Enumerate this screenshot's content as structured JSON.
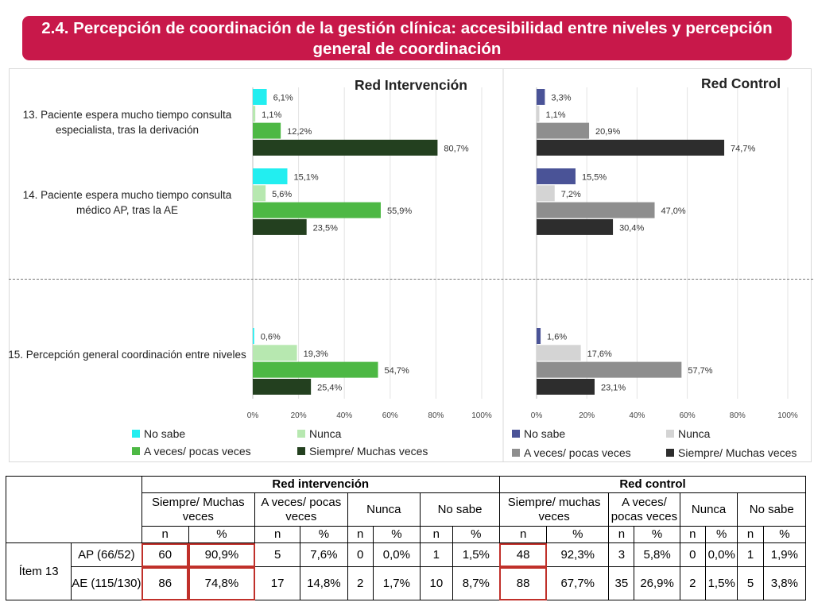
{
  "title": "2.4. Percepción de coordinación de la gestión clínica: accesibilidad entre niveles y percepción general de coordinación",
  "chart_data": [
    {
      "type": "bar",
      "orientation": "horizontal",
      "title": "Red Intervención",
      "categories": [
        "13. Paciente espera mucho tiempo consulta especialista, tras la derivación",
        "14. Paciente espera mucho tiempo consulta médico AP, tras la AE",
        "15. Percepción general coordinación entre niveles"
      ],
      "series": [
        {
          "name": "No sabe",
          "color": "#22eef0",
          "values": [
            6.1,
            15.1,
            0.6
          ],
          "labels": [
            "6,1%",
            "15,1%",
            "0,6%"
          ]
        },
        {
          "name": "Nunca",
          "color": "#b7e8b0",
          "values": [
            1.1,
            5.6,
            19.3
          ],
          "labels": [
            "1,1%",
            "5,6%",
            "19,3%"
          ]
        },
        {
          "name": "A veces/ pocas veces",
          "color": "#4db844",
          "values": [
            12.2,
            55.9,
            54.7
          ],
          "labels": [
            "12,2%",
            "55,9%",
            "54,7%"
          ]
        },
        {
          "name": "Siempre/ Muchas veces",
          "color": "#23401f",
          "values": [
            80.7,
            23.5,
            25.4
          ],
          "labels": [
            "80,7%",
            "23,5%",
            "25,4%"
          ]
        }
      ],
      "xlim": [
        0,
        100
      ],
      "xticks": [
        "0%",
        "20%",
        "40%",
        "60%",
        "80%",
        "100%"
      ],
      "grid": true
    },
    {
      "type": "bar",
      "orientation": "horizontal",
      "title": "Red Control",
      "categories": [
        "13. Paciente espera mucho tiempo consulta especialista, tras la derivación",
        "14. Paciente espera mucho tiempo consulta médico AP, tras la AE",
        "15. Percepción general coordinación entre niveles"
      ],
      "series": [
        {
          "name": "No sabe",
          "color": "#4a5397",
          "values": [
            3.3,
            15.5,
            1.6
          ],
          "labels": [
            "3,3%",
            "15,5%",
            "1,6%"
          ]
        },
        {
          "name": "Nunca",
          "color": "#d4d4d4",
          "values": [
            1.1,
            7.2,
            17.6
          ],
          "labels": [
            "1,1%",
            "7,2%",
            "17,6%"
          ]
        },
        {
          "name": "A veces/ pocas veces",
          "color": "#8e8e8e",
          "values": [
            20.9,
            47.0,
            57.7
          ],
          "labels": [
            "20,9%",
            "47,0%",
            "57,7%"
          ]
        },
        {
          "name": "Siempre/ Muchas veces",
          "color": "#2d2d2d",
          "values": [
            74.7,
            30.4,
            23.1
          ],
          "labels": [
            "74,7%",
            "30,4%",
            "23,1%"
          ]
        }
      ],
      "xlim": [
        0,
        100
      ],
      "xticks": [
        "0%",
        "20%",
        "40%",
        "60%",
        "80%",
        "100%"
      ],
      "grid": true
    }
  ],
  "table": {
    "group_intervencion": "Red intervención",
    "group_control": "Red control",
    "categories": [
      "Siempre/ Muchas veces",
      "A veces/ pocas veces",
      "Nunca",
      "No sabe",
      "Siempre/ muchas veces",
      "A veces/ pocas veces",
      "Nunca",
      "No sabe"
    ],
    "subheaders": [
      "n",
      "%",
      "n",
      "%",
      "n",
      "%",
      "n",
      "%",
      "n",
      "%",
      "n",
      "%",
      "n",
      "%",
      "n",
      "%"
    ],
    "item_label": "Ítem 13",
    "rows": [
      {
        "label": "AP (66/52)",
        "cells": [
          "60",
          "90,9%",
          "5",
          "7,6%",
          "0",
          "0,0%",
          "1",
          "1,5%",
          "48",
          "92,3%",
          "3",
          "5,8%",
          "0",
          "0,0%",
          "1",
          "1,9%"
        ]
      },
      {
        "label": "AE (115/130)",
        "cells": [
          "86",
          "74,8%",
          "17",
          "14,8%",
          "2",
          "1,7%",
          "10",
          "8,7%",
          "88",
          "67,7%",
          "35",
          "26,9%",
          "2",
          "1,5%",
          "5",
          "3,8%"
        ]
      }
    ]
  }
}
